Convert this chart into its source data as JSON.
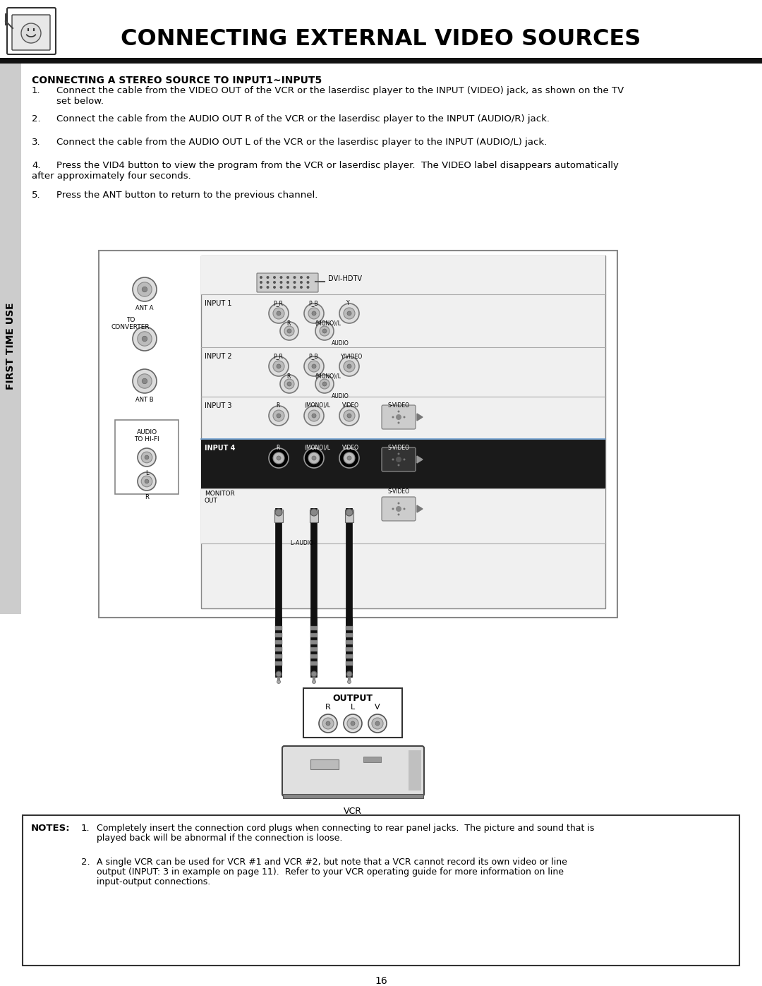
{
  "title": "CONNECTING EXTERNAL VIDEO SOURCES",
  "section_heading": "CONNECTING A STEREO SOURCE TO INPUT1~INPUT5",
  "instr1": "Connect the cable from the VIDEO OUT of the VCR or the laserdisc player to the INPUT (VIDEO) jack, as shown on the TV",
  "instr1b": "set below.",
  "instr2": "Connect the cable from the AUDIO OUT R of the VCR or the laserdisc player to the INPUT (AUDIO/R) jack.",
  "instr3": "Connect the cable from the AUDIO OUT L of the VCR or the laserdisc player to the INPUT (AUDIO/L) jack.",
  "instr4a": "Press the VID4 button to view the program from the VCR or laserdisc player.  The VIDEO label disappears automatically",
  "instr4b": "after approximately four seconds.",
  "instr5": "Press the ANT button to return to the previous channel.",
  "notes_label": "NOTES:",
  "note1": "Completely insert the connection cord plugs when connecting to rear panel jacks.  The picture and sound that is",
  "note1b": "played back will be abnormal if the connection is loose.",
  "note2": "A single VCR can be used for VCR #1 and VCR #2, but note that a VCR cannot record its own video or line",
  "note2b": "output (INPUT: 3 in example on page 11).  Refer to your VCR operating guide for more information on line",
  "note2c": "input-output connections.",
  "page_number": "16",
  "side_label": "FIRST TIME USE",
  "bg_color": "#ffffff"
}
